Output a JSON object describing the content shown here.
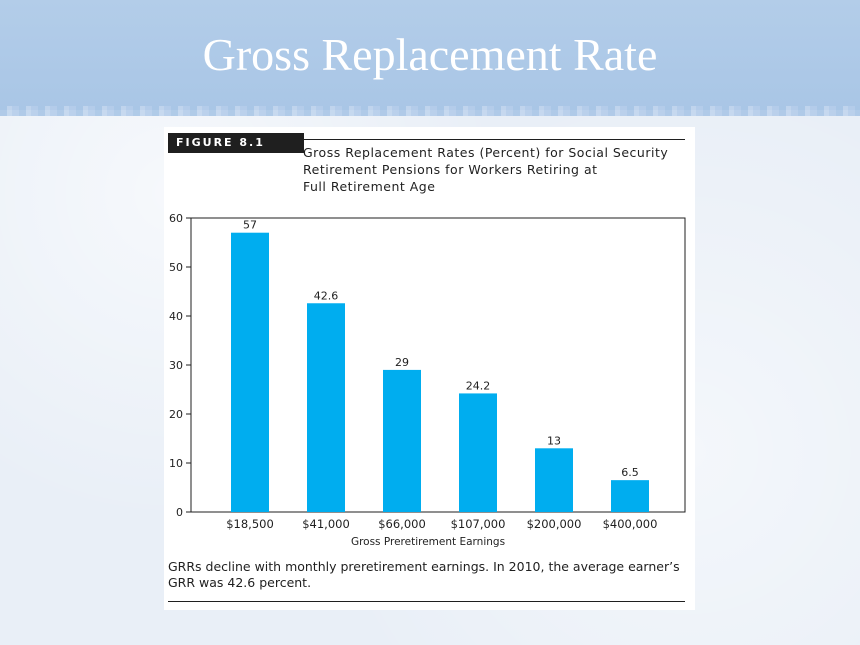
{
  "slide": {
    "title": "Gross Replacement Rate"
  },
  "figure": {
    "tag": "FIGURE 8.1",
    "title_lines": [
      "Gross Replacement Rates (Percent) for Social Security",
      "Retirement Pensions for Workers Retiring at",
      "Full Retirement Age"
    ],
    "caption": "GRRs decline with monthly preretirement earnings. In 2010, the average earner’s GRR was 42.6 percent."
  },
  "colors": {
    "bar": "#00adef",
    "axis": "#1f1f1f",
    "banner": "#adc8e7"
  },
  "chart_data": {
    "type": "bar",
    "categories": [
      "$18,500",
      "$41,000",
      "$66,000",
      "$107,000",
      "$200,000",
      "$400,000"
    ],
    "values": [
      57,
      42.6,
      29,
      24.2,
      13,
      6.5
    ],
    "value_labels": [
      "57",
      "42.6",
      "29",
      "24.2",
      "13",
      "6.5"
    ],
    "xlabel": "Gross Preretirement Earnings",
    "ylabel": "",
    "ylim": [
      0,
      60
    ],
    "yticks": [
      0,
      10,
      20,
      30,
      40,
      50,
      60
    ],
    "grid": false,
    "legend": "none"
  }
}
